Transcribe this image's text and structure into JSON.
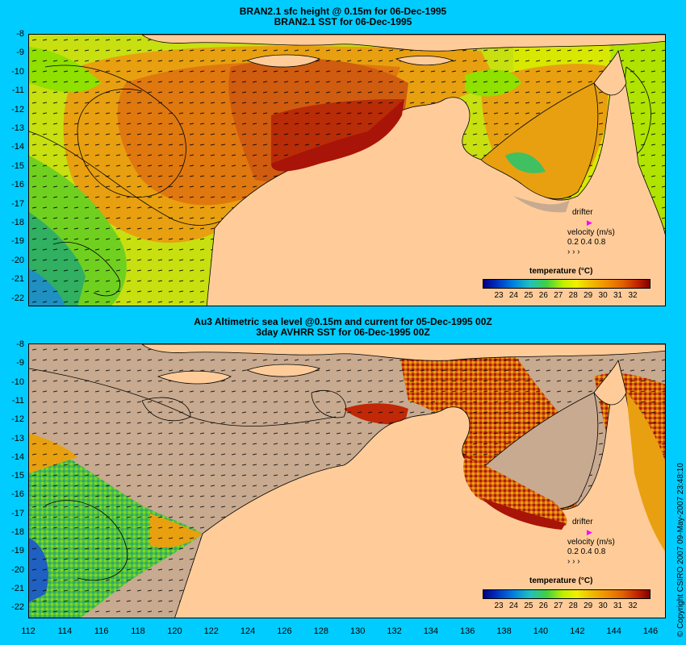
{
  "top_panel": {
    "title_line1": "BRAN2.1 sfc height @ 0.15m for 06-Dec-1995",
    "title_line2": "BRAN2.1 SST for 06-Dec-1995",
    "legend_title": "temperature (°C)",
    "drifter_label": "drifter",
    "velocity_label": "velocity (m/s)",
    "velocity_scale": "0.2 0.4 0.8",
    "velocity_arrows": "›  ›  ›"
  },
  "bottom_panel": {
    "title_line1": "Au3 Altimetric sea level  @0.15m and current for 05-Dec-1995 00Z",
    "title_line2": "3day AVHRR SST for 06-Dec-1995 00Z",
    "legend_title": "temperature (°C)",
    "drifter_label": "drifter",
    "velocity_label": "velocity (m/s)",
    "velocity_scale": "0.2 0.4 0.8",
    "velocity_arrows": "›  ›  ›"
  },
  "colorbar_ticks": [
    "23",
    "24",
    "25",
    "26",
    "27",
    "28",
    "29",
    "30",
    "31",
    "32"
  ],
  "lat_labels": [
    "-8",
    "-9",
    "-10",
    "-11",
    "-12",
    "-13",
    "-14",
    "-15",
    "-16",
    "-17",
    "-18",
    "-19",
    "-20",
    "-21",
    "-22"
  ],
  "lon_labels": [
    "112",
    "114",
    "116",
    "118",
    "120",
    "122",
    "124",
    "126",
    "128",
    "130",
    "132",
    "134",
    "136",
    "138",
    "140",
    "142",
    "144",
    "146"
  ],
  "copyright": "© Copyright CSIRO 2007  09-May-2007 23:48:10",
  "colors": {
    "background": "#00ccff",
    "land": "#ffcc99",
    "missing_data": "#c8aa90",
    "drifter": "#ff00ff"
  }
}
